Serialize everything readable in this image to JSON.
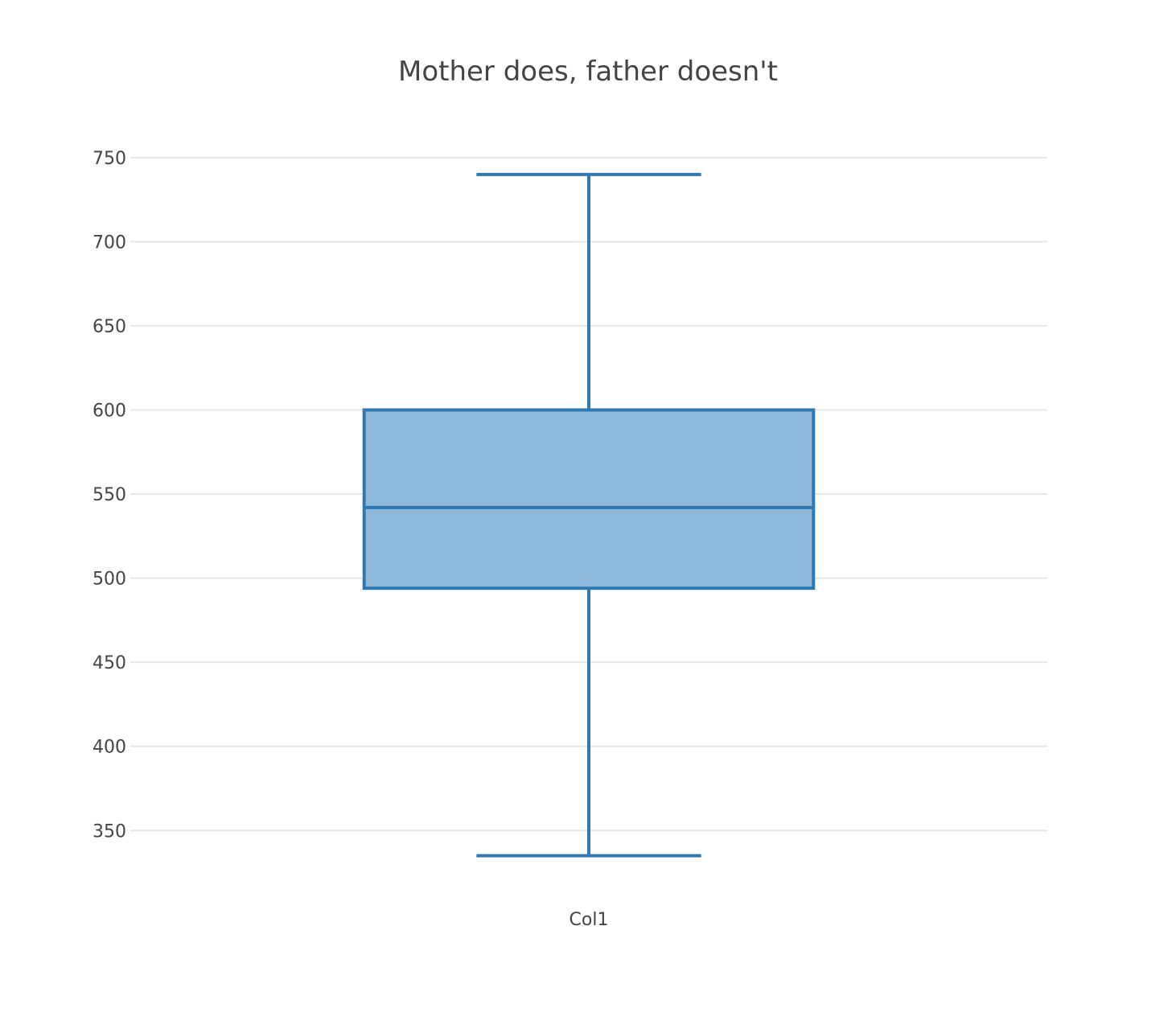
{
  "chart_data": {
    "type": "box",
    "title": "Mother does, father doesn't",
    "xlabel": "",
    "ylabel": "",
    "categories": [
      "Col1"
    ],
    "ylim": [
      320,
      760
    ],
    "y_ticks": [
      350,
      400,
      450,
      500,
      550,
      600,
      650,
      700,
      750
    ],
    "grid": true,
    "legend": "none",
    "series": [
      {
        "category": "Col1",
        "min": 335,
        "q1": 494,
        "median": 542,
        "q3": 600,
        "max": 740
      }
    ],
    "colors": {
      "line": "#2e78b4",
      "fill": "#8fb9da",
      "grid": "#e6e6e6",
      "text": "#444444"
    }
  }
}
